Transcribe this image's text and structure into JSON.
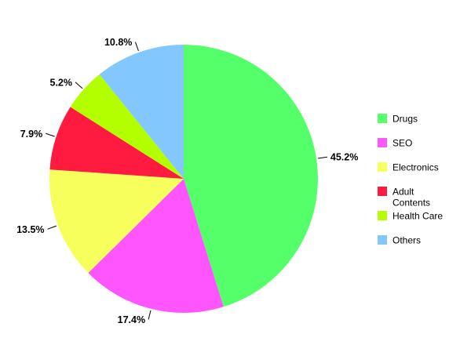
{
  "chart_data": {
    "type": "pie",
    "title": "",
    "start": "12 o'clock, clockwise",
    "legend_position": "right",
    "slices": [
      {
        "label": "Drugs",
        "value": 45.2,
        "value_label": "45.2%",
        "color": "#55ff6a"
      },
      {
        "label": "SEO",
        "value": 17.4,
        "value_label": "17.4%",
        "color": "#ff55ff"
      },
      {
        "label": "Electronics",
        "value": 13.5,
        "value_label": "13.5%",
        "color": "#f6ff5c"
      },
      {
        "label": "Adult Contents",
        "label_lines": [
          "Adult",
          "Contents"
        ],
        "value": 7.9,
        "value_label": "7.9%",
        "color": "#ff1a40"
      },
      {
        "label": "Health Care",
        "value": 5.2,
        "value_label": "5.2%",
        "color": "#b3ff00"
      },
      {
        "label": "Others",
        "value": 10.8,
        "value_label": "10.8%",
        "color": "#82c8ff"
      }
    ]
  }
}
